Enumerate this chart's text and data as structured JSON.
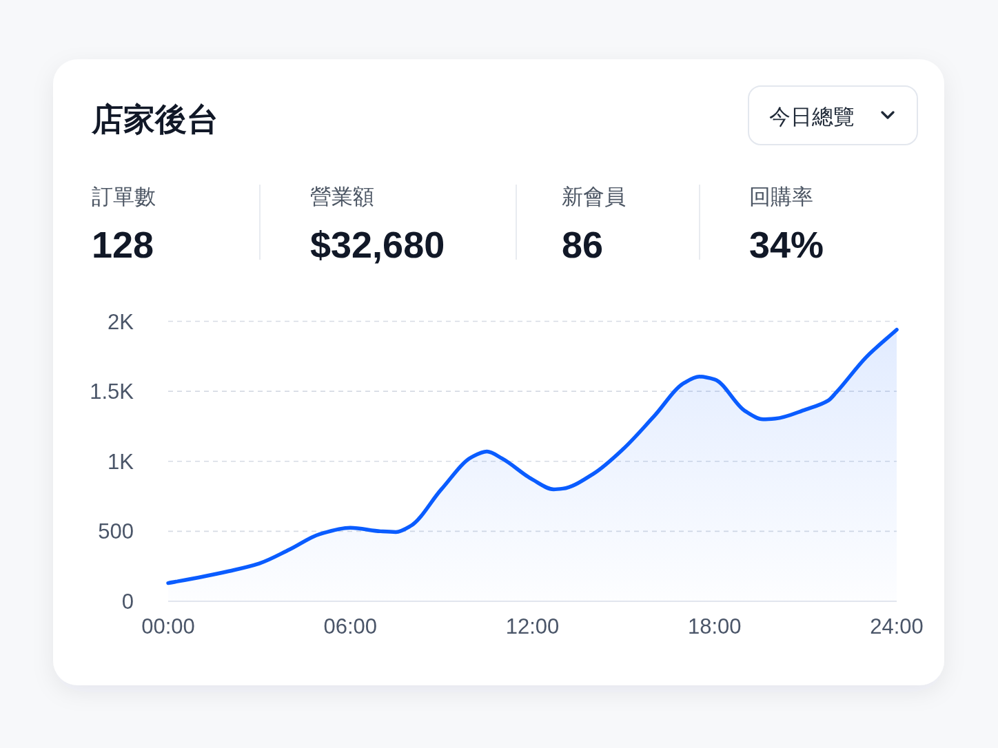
{
  "chart_data": {
    "type": "area",
    "title": "店家後台",
    "annotations": [
      "今日總覽",
      "訂單數",
      "128",
      "營業額",
      "$32,680",
      "新會員",
      "86",
      "回購率",
      "34%"
    ],
    "x": [
      0,
      1,
      2,
      3,
      4,
      5,
      6,
      7,
      7.5,
      8,
      9,
      10,
      10.5,
      11,
      12,
      12.7,
      13,
      14,
      15,
      16,
      17,
      17.5,
      18,
      19,
      19.6,
      20,
      21,
      21.75,
      22,
      23,
      24
    ],
    "values": [
      130,
      170,
      215,
      270,
      370,
      480,
      525,
      500,
      495,
      540,
      800,
      1030,
      1070,
      1020,
      870,
      800,
      805,
      910,
      1090,
      1320,
      1560,
      1605,
      1585,
      1360,
      1300,
      1305,
      1370,
      1435,
      1490,
      1745,
      1940
    ],
    "color": "#0a5cff",
    "xlim": [
      0,
      24
    ],
    "xticks": [
      {
        "value": 0,
        "label": "00:00"
      },
      {
        "value": 6,
        "label": "06:00"
      },
      {
        "value": 12,
        "label": "12:00"
      },
      {
        "value": 18,
        "label": "18:00"
      },
      {
        "value": 24,
        "label": "24:00"
      }
    ],
    "ylim": [
      0,
      2000
    ],
    "yticks": [
      0,
      500,
      {
        "value": 1000,
        "label": "1K"
      },
      {
        "value": 1500,
        "label": "1.5K"
      },
      {
        "value": 2000,
        "label": "2K"
      }
    ],
    "grid": "y"
  }
}
